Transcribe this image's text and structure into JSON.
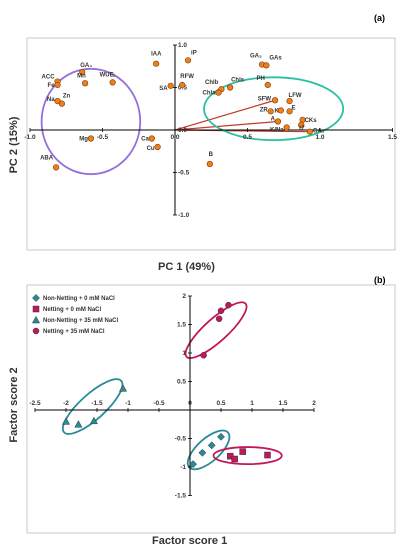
{
  "figure": {
    "panel_a_tag": "(a)",
    "panel_b_tag": "(b)"
  },
  "chart_data": [
    {
      "type": "scatter",
      "panel": "(a)",
      "xlabel": "PC 1 (49%)",
      "ylabel": "PC 2 (15%)",
      "xlim": [
        -1.0,
        1.5
      ],
      "ylim": [
        -1.0,
        1.0
      ],
      "xticks": [
        -1.0,
        -0.5,
        0,
        0.5,
        1,
        1.5
      ],
      "yticks": [
        -1.0,
        -0.5,
        0,
        0.5,
        1.0
      ],
      "xtick_labels": [
        "-1.0",
        "-0.5",
        "0.0",
        "0.5",
        "1.0",
        "1.5"
      ],
      "ytick_labels": [
        "-1.0",
        "-0.5",
        "0.0",
        "0.5",
        "1.0"
      ],
      "colors": {
        "points": "#f07f1b",
        "point_edge": "#7a3b05",
        "vectors": "#c0392b"
      },
      "points": [
        {
          "label": "GA₄",
          "x": -0.64,
          "y": 0.68
        },
        {
          "label": "ACC",
          "x": -0.81,
          "y": 0.57
        },
        {
          "label": "Fe",
          "x": -0.81,
          "y": 0.53
        },
        {
          "label": "Mn",
          "x": -0.62,
          "y": 0.55
        },
        {
          "label": "WUEᵢ",
          "x": -0.43,
          "y": 0.56
        },
        {
          "label": "Na",
          "x": -0.81,
          "y": 0.34
        },
        {
          "label": "Zn",
          "x": -0.78,
          "y": 0.31
        },
        {
          "label": "Mg",
          "x": -0.58,
          "y": -0.1
        },
        {
          "label": "ABA",
          "x": -0.82,
          "y": -0.44
        },
        {
          "label": "IAA",
          "x": -0.13,
          "y": 0.78
        },
        {
          "label": "SA",
          "x": -0.03,
          "y": 0.52
        },
        {
          "label": "iP",
          "x": 0.09,
          "y": 0.82
        },
        {
          "label": "RFW",
          "x": 0.05,
          "y": 0.53
        },
        {
          "label": "Ca",
          "x": -0.16,
          "y": -0.1
        },
        {
          "label": "Cu",
          "x": -0.12,
          "y": -0.2
        },
        {
          "label": "B",
          "x": 0.24,
          "y": -0.4
        },
        {
          "label": "GA₃",
          "x": 0.6,
          "y": 0.77
        },
        {
          "label": "GAs",
          "x": 0.63,
          "y": 0.76
        },
        {
          "label": "Chls",
          "x": 0.38,
          "y": 0.5
        },
        {
          "label": "Chlb",
          "x": 0.32,
          "y": 0.48
        },
        {
          "label": "Chla",
          "x": 0.3,
          "y": 0.44
        },
        {
          "label": "PH",
          "x": 0.64,
          "y": 0.53
        },
        {
          "label": "SFW",
          "x": 0.69,
          "y": 0.35
        },
        {
          "label": "LFW",
          "x": 0.79,
          "y": 0.34
        },
        {
          "label": "ZR",
          "x": 0.66,
          "y": 0.22
        },
        {
          "label": "K",
          "x": 0.73,
          "y": 0.23
        },
        {
          "label": "E",
          "x": 0.79,
          "y": 0.22
        },
        {
          "label": "A",
          "x": 0.71,
          "y": 0.1
        },
        {
          "label": "CKs",
          "x": 0.88,
          "y": 0.12
        },
        {
          "label": "K/Na",
          "x": 0.77,
          "y": 0.03
        },
        {
          "label": "tZ",
          "x": 0.87,
          "y": 0.06
        },
        {
          "label": "GA₁",
          "x": 0.93,
          "y": -0.02
        }
      ],
      "vectors_to": [
        "SFW",
        "A",
        "GA₁"
      ],
      "ellipses": [
        {
          "color": "#9370db",
          "center": [
            -0.58,
            0.1
          ],
          "radii": [
            0.34,
            0.62
          ]
        },
        {
          "color": "#2bbfa3",
          "center": [
            0.68,
            0.25
          ],
          "radii": [
            0.48,
            0.37
          ]
        }
      ]
    },
    {
      "type": "scatter",
      "panel": "(b)",
      "xlabel": "Factor score 1",
      "ylabel": "Factor score 2",
      "xlim": [
        -2.5,
        2.0
      ],
      "ylim": [
        -1.5,
        2.0
      ],
      "xticks": [
        -2.5,
        -2,
        -1.5,
        -1,
        -0.5,
        0,
        0.5,
        1,
        1.5,
        2
      ],
      "yticks": [
        -1.5,
        -1,
        -0.5,
        0.5,
        1,
        1.5,
        2
      ],
      "xtick_labels": [
        "-2.5",
        "-2",
        "-1.5",
        "-1",
        "-0.5",
        "0",
        "0.5",
        "1",
        "1.5",
        "2"
      ],
      "ytick_labels": [
        "-1.5",
        "-1",
        "-0.5",
        "0.5",
        "1",
        "1.5",
        "2"
      ],
      "legend_position": "top-left",
      "series": [
        {
          "name": "Non-Netting + 0 mM NaCl",
          "marker": "diamond",
          "color": "#2a8a96",
          "x": [
            0.05,
            0.2,
            0.35,
            0.5
          ],
          "y": [
            -0.95,
            -0.75,
            -0.62,
            -0.47
          ]
        },
        {
          "name": "Netting + 0 mM NaCl",
          "marker": "square",
          "color": "#c2185b",
          "x": [
            0.65,
            0.72,
            0.85,
            1.25
          ],
          "y": [
            -0.81,
            -0.86,
            -0.73,
            -0.79
          ]
        },
        {
          "name": "Non-Netting + 35 mM NaCl",
          "marker": "triangle",
          "color": "#2a8a96",
          "x": [
            -2.0,
            -1.8,
            -1.55,
            -1.08
          ],
          "y": [
            -0.2,
            -0.25,
            -0.19,
            0.38
          ]
        },
        {
          "name": "Netting + 35 mM NaCl",
          "marker": "circle",
          "color": "#c2185b",
          "x": [
            0.22,
            0.47,
            0.5,
            0.62
          ],
          "y": [
            0.96,
            1.6,
            1.74,
            1.84
          ]
        }
      ],
      "ellipses": [
        {
          "color": "#2a8a96",
          "center": [
            0.3,
            -0.7
          ],
          "radii": [
            0.42,
            0.2
          ]
        },
        {
          "color": "#c2185b",
          "center": [
            0.93,
            -0.8
          ],
          "radii": [
            0.55,
            0.15
          ]
        },
        {
          "color": "#2a8a96",
          "center": [
            -1.57,
            0.06
          ],
          "radii": [
            0.62,
            0.22
          ]
        },
        {
          "color": "#c2185b",
          "center": [
            0.42,
            1.4
          ],
          "radii": [
            0.64,
            0.2
          ]
        }
      ]
    }
  ]
}
